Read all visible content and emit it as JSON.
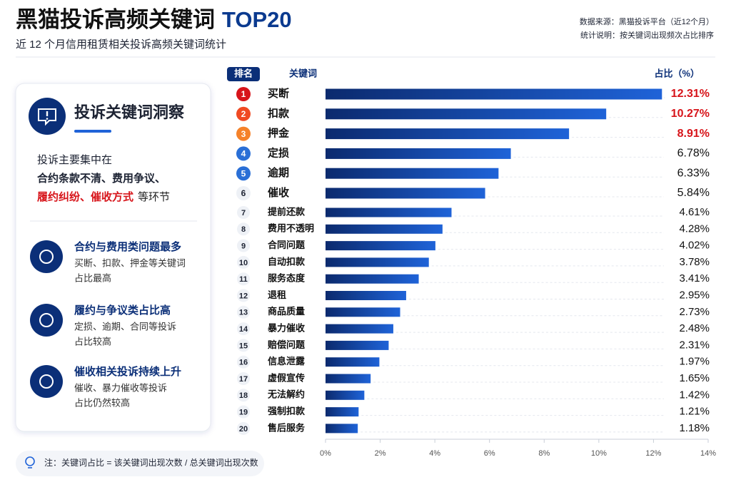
{
  "chart_data": {
    "type": "bar",
    "orientation": "horizontal",
    "title_parts": [
      "黑猫投诉高频关键词",
      "TOP20"
    ],
    "subtitle": "近 12 个月信用租赁相关投诉高频关键词统计",
    "source": "数据来源：黑猫投诉平台（近12个月）",
    "method_note": "统计说明：按关键词出现频次占比排序",
    "column_headers": [
      "排名",
      "关键词",
      "占比（%）"
    ],
    "ranks": [
      "1",
      "2",
      "3",
      "4",
      "5",
      "6",
      "7",
      "8",
      "9",
      "10",
      "11",
      "12",
      "13",
      "14",
      "15",
      "16",
      "17",
      "18",
      "19",
      "20"
    ],
    "categories": [
      "买断",
      "扣款",
      "押金",
      "定损",
      "逾期",
      "催收",
      "提前还款",
      "费用不透明",
      "合同问题",
      "自动扣款",
      "服务态度",
      "退租",
      "商品质量",
      "暴力催收",
      "赔偿问题",
      "信息泄露",
      "虚假宣传",
      "无法解约",
      "强制扣款",
      "售后服务"
    ],
    "values": [
      12.31,
      10.27,
      8.91,
      6.78,
      6.33,
      5.84,
      4.61,
      4.28,
      4.02,
      3.78,
      3.41,
      2.95,
      2.73,
      2.48,
      2.31,
      1.97,
      1.65,
      1.42,
      1.21,
      1.18
    ],
    "value_labels": [
      "12.31%",
      "10.27%",
      "8.91%",
      "6.78%",
      "6.33%",
      "5.84%",
      "4.61%",
      "4.28%",
      "4.02%",
      "3.78%",
      "3.41%",
      "2.95%",
      "2.73%",
      "2.48%",
      "2.31%",
      "1.97%",
      "1.65%",
      "1.42%",
      "1.21%",
      "1.18%"
    ],
    "color": "#1a56c4",
    "rank_colors": [
      "#d7141a",
      "#f04a23",
      "#f5822a",
      "#2a6fd6",
      "#2a6fd6"
    ],
    "highlight_color": "#d7141a",
    "xlim": [
      0,
      14
    ],
    "xticks": [
      {
        "value": 0,
        "label": "0%"
      },
      {
        "value": 2,
        "label": "2%"
      },
      {
        "value": 4,
        "label": "4%"
      },
      {
        "value": 6,
        "label": "6%"
      },
      {
        "value": 8,
        "label": "8%"
      },
      {
        "value": 10,
        "label": "10%"
      },
      {
        "value": 12,
        "label": "12%"
      },
      {
        "value": 14,
        "label": "14%"
      }
    ]
  },
  "insight_panel": {
    "heading": "投诉关键词洞察",
    "intro": "投诉主要集中在",
    "highlight_lines": [
      "合约条款不清、费用争议、",
      "履约纠纷、催收方式"
    ],
    "intro_tail": "等环节",
    "items": [
      {
        "title": "合约与费用类问题最多",
        "lines": [
          "买断、扣款、押金等关键词",
          "占比最高"
        ]
      },
      {
        "title": "履约与争议类占比高",
        "lines": [
          "定损、逾期、合同等投诉",
          "占比较高"
        ]
      },
      {
        "title": "催收相关投诉持续上升",
        "lines": [
          "催收、暴力催收等投诉",
          "占比仍然较高"
        ]
      }
    ]
  },
  "footnote": "注：关键词占比 = 该关键词出现次数 / 总关键词出现次数"
}
